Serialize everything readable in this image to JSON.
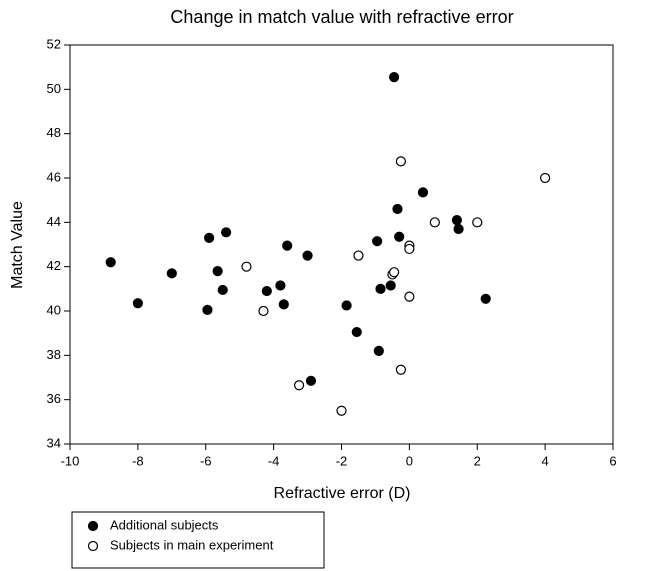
{
  "chart_data": {
    "type": "scatter",
    "title": "Change in match value with refractive error",
    "x_label": "Refractive error (D)",
    "y_label": "Match Value",
    "xlim": [
      -10,
      6
    ],
    "xticks": [
      -10,
      -8,
      -6,
      -4,
      -2,
      0,
      2,
      4,
      6
    ],
    "ylim": [
      34,
      52
    ],
    "yticks": [
      34,
      36,
      38,
      40,
      42,
      44,
      46,
      48,
      50,
      52
    ],
    "series": [
      {
        "name": "Additional subjects",
        "color": "#000000",
        "x": [
          -8.8,
          -8.0,
          -7.0,
          -5.9,
          -5.95,
          -5.65,
          -5.5,
          -5.4,
          -4.2,
          -3.8,
          -3.7,
          -3.6,
          -3.0,
          -2.9,
          -1.85,
          -1.55,
          -0.95,
          -0.9,
          -0.85,
          -0.55,
          -0.45,
          -0.35,
          -0.3,
          0.4,
          1.4,
          1.45,
          2.25
        ],
        "values": [
          42.2,
          40.35,
          41.7,
          43.3,
          40.05,
          41.8,
          40.95,
          43.55,
          40.9,
          41.15,
          40.3,
          42.95,
          42.5,
          36.85,
          40.25,
          39.05,
          43.15,
          38.2,
          41.0,
          41.15,
          50.55,
          44.6,
          43.35,
          45.35,
          44.1,
          43.7,
          40.55
        ]
      },
      {
        "name": "Subjects in main experiment",
        "color": "#ffffff",
        "x": [
          -4.8,
          -4.3,
          -3.25,
          -1.5,
          -2.0,
          -0.5,
          -0.45,
          -0.25,
          -0.25,
          0.0,
          0.0,
          0.0,
          0.75,
          2.0,
          4.0
        ],
        "values": [
          42.0,
          40.0,
          36.65,
          42.5,
          35.5,
          41.65,
          41.75,
          46.75,
          37.35,
          42.95,
          42.8,
          40.65,
          44.0,
          44.0,
          46.0
        ]
      }
    ]
  }
}
